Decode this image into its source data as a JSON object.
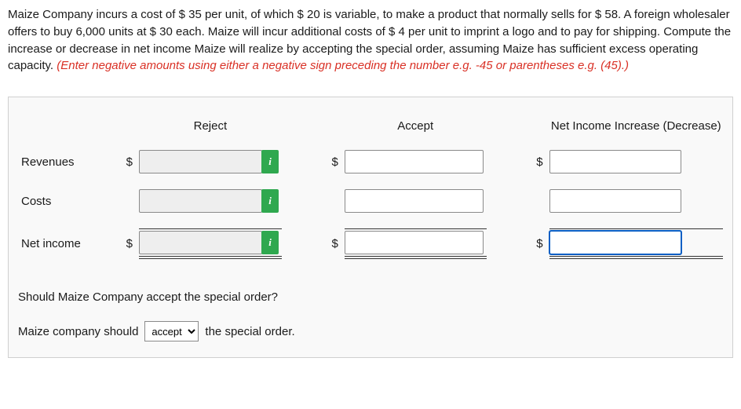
{
  "problem": {
    "mainText": "Maize Company incurs a cost of $ 35 per unit, of which $ 20 is variable, to make a product that normally sells for $ 58. A foreign wholesaler offers to buy 6,000 units at $ 30 each. Maize will incur additional costs of $ 4 per unit to imprint a logo and to pay for shipping. Compute the increase or decrease in net income Maize will realize by accepting the special order, assuming Maize has sufficient excess operating capacity. ",
    "note": "(Enter negative amounts using either a negative sign preceding the number e.g. -45 or parentheses e.g. (45).)"
  },
  "table": {
    "headers": {
      "reject": "Reject",
      "accept": "Accept",
      "net": "Net Income Increase (Decrease)"
    },
    "rows": {
      "revenues": {
        "label": "Revenues",
        "dollar": "$",
        "reject": "",
        "accept": "",
        "net": ""
      },
      "costs": {
        "label": "Costs",
        "dollar": "",
        "reject": "",
        "accept": "",
        "net": ""
      },
      "netincome": {
        "label": "Net income",
        "dollar": "$",
        "reject": "",
        "accept": "",
        "net": ""
      }
    },
    "infoIcon": "i"
  },
  "question2": {
    "prompt": "Should Maize Company accept the special order?",
    "prefix": "Maize company should",
    "selectValue": "accept",
    "options": [
      "accept"
    ],
    "suffix": "the special order."
  }
}
